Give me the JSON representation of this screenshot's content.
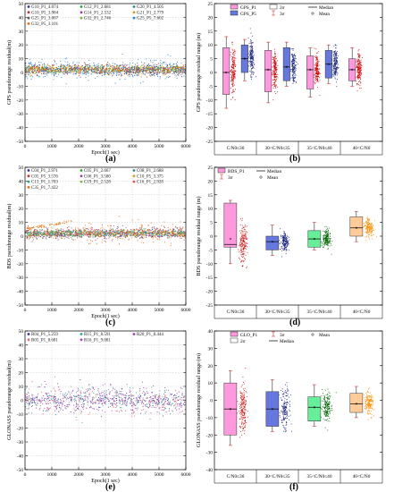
{
  "figure": {
    "panel_letters": [
      "(a)",
      "(b)",
      "(c)",
      "(d)",
      "(e)",
      "(f)"
    ]
  },
  "chart_data": [
    {
      "panel": "(a)",
      "type": "scatter",
      "xlabel": "Epoch(1 sec)",
      "ylabel": "GPS pseudorange residual(m)",
      "xlim": [
        0,
        6000
      ],
      "ylim": [
        -50,
        50
      ],
      "xticks": [
        0,
        1000,
        2000,
        3000,
        4000,
        5000,
        6000
      ],
      "yticks": [
        -50,
        -40,
        -30,
        -20,
        -10,
        0,
        10,
        20,
        30,
        40,
        50
      ],
      "grid": true,
      "legend_position": "top",
      "series": [
        {
          "name": "G10_P1_4.074",
          "color": "#2f2f9f",
          "std": 4.074,
          "center": 2
        },
        {
          "name": "G12_P1_2.681",
          "color": "#2e9b3a",
          "std": 2.681,
          "center": 2
        },
        {
          "name": "G20_P1_4.505",
          "color": "#2c8c8c",
          "std": 4.505,
          "center": 2
        },
        {
          "name": "G10_P5_3.984",
          "color": "#c02a2a",
          "std": 3.984,
          "center": 2
        },
        {
          "name": "G14_P1_2.532",
          "color": "#9a3ea8",
          "std": 2.532,
          "center": 2
        },
        {
          "name": "G21_P1_2.779",
          "color": "#d4a017",
          "std": 2.779,
          "center": 2
        },
        {
          "name": "G25_P1_3.007",
          "color": "#5a5a5a",
          "std": 3.007,
          "center": 2
        },
        {
          "name": "G32_P1_2.746",
          "color": "#7cb342",
          "std": 2.746,
          "center": 2
        },
        {
          "name": "G25_P5_7.602",
          "color": "#1e88e5",
          "std": 7.602,
          "center": 2
        },
        {
          "name": "G32_P5_3.101",
          "color": "#ef6c00",
          "std": 3.101,
          "center": 2
        }
      ]
    },
    {
      "panel": "(b)",
      "type": "box",
      "ylabel": "GPS pseudorange residual range (m)",
      "ylim": [
        -25,
        25
      ],
      "yticks": [
        -25,
        -20,
        -15,
        -10,
        -5,
        0,
        5,
        10,
        15,
        20,
        25
      ],
      "categories": [
        "C/N0≤30",
        "30<C/N0≤35",
        "35<C/N0≤40",
        "40<C/N0"
      ],
      "legend": [
        "GPS_P1",
        "GPS_P5",
        "2σ",
        "3σ",
        "Median",
        "Mean"
      ],
      "legend_position": "top-right",
      "series": [
        {
          "name": "GPS_P1",
          "color": "#ff99dd",
          "cloud": "#cc0000",
          "boxes": [
            {
              "cat": 0,
              "q1": -8,
              "q3": 9,
              "median": 0,
              "mean": 0,
              "w_low": -13,
              "w_high": 13,
              "spread": 7
            },
            {
              "cat": 1,
              "q1": -7,
              "q3": 8,
              "median": 1,
              "mean": 1,
              "w_low": -11,
              "w_high": 11,
              "spread": 6
            },
            {
              "cat": 2,
              "q1": -6,
              "q3": 6,
              "median": 1,
              "mean": 1,
              "w_low": -9,
              "w_high": 9,
              "spread": 5
            },
            {
              "cat": 3,
              "q1": -3,
              "q3": 5,
              "median": 1,
              "mean": 1,
              "w_low": -5,
              "w_high": 9,
              "spread": 5
            }
          ]
        },
        {
          "name": "GPS_P5",
          "color": "#6677dd",
          "cloud": "#1a237e",
          "boxes": [
            {
              "cat": 0,
              "q1": 0,
              "q3": 10,
              "median": 5,
              "mean": 5,
              "w_low": -3,
              "w_high": 12,
              "spread": 6
            },
            {
              "cat": 1,
              "q1": -3,
              "q3": 9,
              "median": 2,
              "mean": 2,
              "w_low": -5,
              "w_high": 11,
              "spread": 5
            },
            {
              "cat": 2,
              "q1": -2,
              "q3": 8,
              "median": 3,
              "mean": 3,
              "w_low": -4,
              "w_high": 10,
              "spread": 5
            }
          ]
        }
      ]
    },
    {
      "panel": "(c)",
      "type": "scatter",
      "xlabel": "Epoch(1 sec)",
      "ylabel": "BDS pseudorange residual(m)",
      "xlim": [
        0,
        6000
      ],
      "ylim": [
        -50,
        50
      ],
      "xticks": [
        0,
        1000,
        2000,
        3000,
        4000,
        5000,
        6000
      ],
      "yticks": [
        -50,
        -40,
        -30,
        -20,
        -10,
        0,
        10,
        20,
        30,
        40,
        50
      ],
      "grid": true,
      "legend_position": "top",
      "series": [
        {
          "name": "C04_P1_2.971",
          "color": "#2f2f9f",
          "std": 2.971,
          "center": 2
        },
        {
          "name": "C05_P1_2.667",
          "color": "#2e9b3a",
          "std": 2.667,
          "center": 2
        },
        {
          "name": "C08_P1_2.688",
          "color": "#2c8c8c",
          "std": 2.688,
          "center": 2
        },
        {
          "name": "C05_P5_3.576",
          "color": "#c02a2a",
          "std": 3.576,
          "center": 2
        },
        {
          "name": "C06_P1_3.580",
          "color": "#9a3ea8",
          "std": 3.58,
          "center": 2
        },
        {
          "name": "C10_P5_3.375",
          "color": "#d4a017",
          "std": 3.375,
          "center": 2
        },
        {
          "name": "C13_P1_1.703",
          "color": "#26a69a",
          "std": 1.703,
          "center": 2
        },
        {
          "name": "C19_P1_2.528",
          "color": "#7cb342",
          "std": 2.528,
          "center": 2
        },
        {
          "name": "C16_P1_2.928",
          "color": "#ef5350",
          "std": 2.928,
          "center": 2
        },
        {
          "name": "C35_P1_7.422",
          "color": "#ef6c00",
          "std": 7.422,
          "center": 2
        }
      ]
    },
    {
      "panel": "(d)",
      "type": "box",
      "ylabel": "BDS pseudorange residual range (m)",
      "ylim": [
        -25,
        25
      ],
      "yticks": [
        -25,
        -20,
        -15,
        -10,
        -5,
        0,
        5,
        10,
        15,
        20,
        25
      ],
      "categories": [
        "C/N0≤30",
        "30<C/N0≤35",
        "35<C/N0≤40",
        "40<C/N0"
      ],
      "legend": [
        "BDS_P1",
        "3σ",
        "Median",
        "Mean"
      ],
      "legend_position": "top-left",
      "series": [
        {
          "name": "BDS_P1",
          "color": "#ff99dd",
          "cloud": "#cc0000",
          "boxes": [
            {
              "cat": 0,
              "q1": -4,
              "q3": 12,
              "median": -3,
              "mean": -1,
              "w_low": -10,
              "w_high": 13,
              "spread": 6
            }
          ]
        },
        {
          "name": "BDS_P1",
          "color": "#6677dd",
          "cloud": "#1a237e",
          "boxes": [
            {
              "cat": 1,
              "q1": -5,
              "q3": 0,
              "median": -2,
              "mean": -2,
              "w_low": -7,
              "w_high": 4,
              "spread": 3
            }
          ]
        },
        {
          "name": "BDS_P1",
          "color": "#66ee99",
          "cloud": "#006400",
          "boxes": [
            {
              "cat": 2,
              "q1": -4,
              "q3": 2,
              "median": -1,
              "mean": -1,
              "w_low": -5,
              "w_high": 5,
              "spread": 3
            }
          ]
        },
        {
          "name": "BDS_P1",
          "color": "#ffcc99",
          "cloud": "#ff8c00",
          "boxes": [
            {
              "cat": 3,
              "q1": 0,
              "q3": 7,
              "median": 3,
              "mean": 3,
              "w_low": -2,
              "w_high": 9,
              "spread": 3
            }
          ]
        }
      ]
    },
    {
      "panel": "(e)",
      "type": "scatter",
      "xlabel": "Epoch(1 sec)",
      "ylabel": "GLONASS pseudorange residual(m)",
      "xlim": [
        0,
        6000
      ],
      "ylim": [
        -50,
        50
      ],
      "xticks": [
        0,
        1000,
        2000,
        3000,
        4000,
        5000,
        6000
      ],
      "yticks": [
        -50,
        -40,
        -30,
        -20,
        -10,
        0,
        10,
        20,
        30,
        40,
        50
      ],
      "grid": true,
      "legend_position": "top",
      "series": [
        {
          "name": "R04_P1_5.259",
          "color": "#2f2f9f",
          "std": 5.259,
          "center": 0
        },
        {
          "name": "R15_P1_8.591",
          "color": "#26a69a",
          "std": 8.591,
          "center": 0
        },
        {
          "name": "R20_P1_8.444",
          "color": "#9a3ea8",
          "std": 8.444,
          "center": 0
        },
        {
          "name": "R05_P1_8.681",
          "color": "#e07070",
          "std": 8.681,
          "center": 0
        },
        {
          "name": "R16_P1_9.081",
          "color": "#ab47bc",
          "std": 9.081,
          "center": 0
        }
      ]
    },
    {
      "panel": "(f)",
      "type": "box",
      "ylabel": "GLONASS pseudorange residual range (m)",
      "ylim": [
        -40,
        40
      ],
      "yticks": [
        -40,
        -30,
        -20,
        -10,
        0,
        10,
        20,
        30,
        40
      ],
      "categories": [
        "C/N0≤30",
        "30<C/N0≤35",
        "35<C/N0≤40",
        "40<C/N0"
      ],
      "legend": [
        "GLO_P1",
        "2σ",
        "3σ",
        "Median",
        "Mean"
      ],
      "legend_position": "top",
      "series": [
        {
          "name": "GLO_P1",
          "color": "#ff99dd",
          "cloud": "#cc0000",
          "boxes": [
            {
              "cat": 0,
              "q1": -20,
              "q3": 10,
              "median": -5,
              "mean": -5,
              "w_low": -26,
              "w_high": 17,
              "spread": 13
            }
          ]
        },
        {
          "name": "GLO_P1",
          "color": "#6677dd",
          "cloud": "#1a237e",
          "boxes": [
            {
              "cat": 1,
              "q1": -15,
              "q3": 5,
              "median": -5,
              "mean": -5,
              "w_low": -18,
              "w_high": 12,
              "spread": 10
            }
          ]
        },
        {
          "name": "GLO_P1",
          "color": "#66ee99",
          "cloud": "#006400",
          "boxes": [
            {
              "cat": 2,
              "q1": -12,
              "q3": 2,
              "median": -4,
              "mean": -4,
              "w_low": -15,
              "w_high": 9,
              "spread": 8
            }
          ]
        },
        {
          "name": "GLO_P1",
          "color": "#ffcc99",
          "cloud": "#ff8c00",
          "boxes": [
            {
              "cat": 3,
              "q1": -7,
              "q3": 4,
              "median": -2,
              "mean": -2,
              "w_low": -10,
              "w_high": 8,
              "spread": 6
            }
          ]
        }
      ]
    }
  ]
}
